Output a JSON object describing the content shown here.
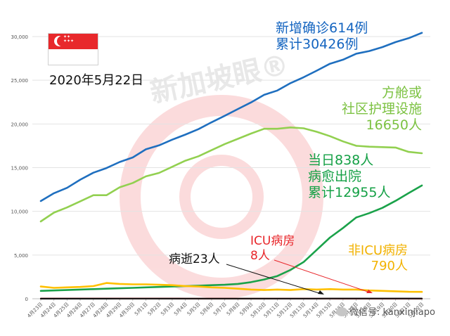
{
  "date": "2020年5月22日",
  "watermark_text": "新加坡眼®",
  "source_credit": "微信号: kanxinjiapo",
  "annotations": {
    "total": [
      "新增确诊614例",
      "累计30426例"
    ],
    "community": [
      "方舱或",
      "社区护理设施",
      "16650人"
    ],
    "discharged": [
      "当日838人",
      "病愈出院",
      "累计12955人"
    ],
    "icu": [
      "ICU病房",
      "8人"
    ],
    "non_icu": [
      "非ICU病房",
      "790人"
    ],
    "deaths": "病逝23人"
  },
  "colors": {
    "total": "#1f6fbf",
    "community": "#92d050",
    "discharged": "#1aa24a",
    "non_icu": "#ffc000",
    "icu": "#e8262a",
    "deaths": "#111111",
    "text_total": "#1565c0",
    "text_community": "#7cc242",
    "text_discharged": "#14a045",
    "text_icu": "#e8262a",
    "text_non_icu": "#f2b200",
    "text_deaths": "#111111"
  },
  "chart_data": {
    "type": "line",
    "ylim": [
      0,
      30000
    ],
    "y_ticks": [
      "0",
      "5,000",
      "10,000",
      "15,000",
      "20,000",
      "25,000",
      "30,000"
    ],
    "y_tick_values": [
      0,
      5000,
      10000,
      15000,
      20000,
      25000,
      30000
    ],
    "grid": "horizontal",
    "x": [
      "4月23日",
      "4月24日",
      "4月25日",
      "4月26日",
      "4月27日",
      "4月28日",
      "4月29日",
      "4月30日",
      "5月1日",
      "5月2日",
      "5月3日",
      "5月4日",
      "5月5日",
      "5月6日",
      "5月7日",
      "5月8日",
      "5月9日",
      "5月10日",
      "5月11日",
      "5月12日",
      "5月13日",
      "5月14日",
      "5月15日",
      "5月16日",
      "5月17日",
      "5月18日",
      "5月19日",
      "5月20日",
      "5月21日",
      "5月22日"
    ],
    "series": [
      {
        "key": "total",
        "values": [
          11178,
          12075,
          12693,
          13624,
          14423,
          14951,
          15641,
          16169,
          17101,
          17548,
          18205,
          18778,
          19410,
          20198,
          20939,
          21707,
          22460,
          23336,
          23822,
          24671,
          25346,
          26098,
          26891,
          27356,
          28038,
          28343,
          28794,
          29364,
          29812,
          30426
        ]
      },
      {
        "key": "community",
        "values": [
          8850,
          9850,
          10450,
          11150,
          11850,
          11850,
          12750,
          13250,
          14000,
          14400,
          15100,
          15800,
          16300,
          17000,
          17700,
          18300,
          18900,
          19450,
          19450,
          19600,
          19500,
          19100,
          18600,
          18000,
          17500,
          17400,
          17350,
          17300,
          16800,
          16650
        ]
      },
      {
        "key": "discharged",
        "values": [
          900,
          950,
          1000,
          1050,
          1100,
          1150,
          1200,
          1250,
          1300,
          1350,
          1400,
          1450,
          1500,
          1550,
          1600,
          1700,
          1900,
          2200,
          2600,
          3300,
          4200,
          5600,
          7000,
          8100,
          9300,
          9800,
          10400,
          11200,
          12100,
          12955
        ]
      },
      {
        "key": "non_icu",
        "values": [
          1400,
          1250,
          1300,
          1350,
          1450,
          1800,
          1700,
          1650,
          1650,
          1600,
          1550,
          1450,
          1400,
          1300,
          1250,
          1150,
          1050,
          1000,
          1050,
          1000,
          1100,
          1050,
          1100,
          1050,
          1050,
          950,
          900,
          850,
          800,
          790
        ]
      },
      {
        "key": "icu",
        "values": [
          25,
          25,
          25,
          26,
          26,
          25,
          24,
          23,
          22,
          22,
          21,
          20,
          20,
          20,
          20,
          20,
          19,
          18,
          17,
          16,
          15,
          14,
          13,
          12,
          11,
          10,
          10,
          9,
          9,
          8
        ]
      },
      {
        "key": "deaths",
        "values": [
          12,
          12,
          12,
          12,
          12,
          12,
          14,
          14,
          15,
          16,
          17,
          17,
          18,
          18,
          18,
          18,
          20,
          20,
          20,
          20,
          20,
          20,
          21,
          21,
          21,
          22,
          22,
          22,
          23,
          23
        ]
      }
    ]
  }
}
